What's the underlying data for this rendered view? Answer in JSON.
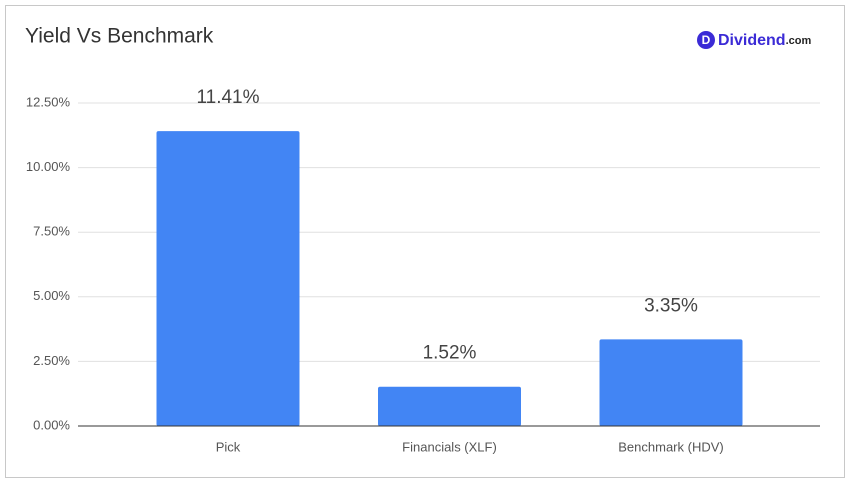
{
  "chart_data": {
    "type": "bar",
    "title": "Yield Vs Benchmark",
    "categories": [
      "Pick",
      "Financials (XLF)",
      "Benchmark (HDV)"
    ],
    "values": [
      11.41,
      1.52,
      3.35
    ],
    "value_labels": [
      "11.41%",
      "1.52%",
      "3.35%"
    ],
    "color": "#4285f4",
    "ylim": [
      0,
      12.5
    ],
    "yticks": [
      {
        "value": 0,
        "label": "0.00%"
      },
      {
        "value": 2.5,
        "label": "2.50%"
      },
      {
        "value": 5,
        "label": "5.00%"
      },
      {
        "value": 7.5,
        "label": "7.50%"
      },
      {
        "value": 10,
        "label": "10.00%"
      },
      {
        "value": 12.5,
        "label": "12.50%"
      }
    ],
    "grid": true
  },
  "logo": {
    "icon": "D",
    "name": "Dividend",
    "suffix": ".com"
  }
}
